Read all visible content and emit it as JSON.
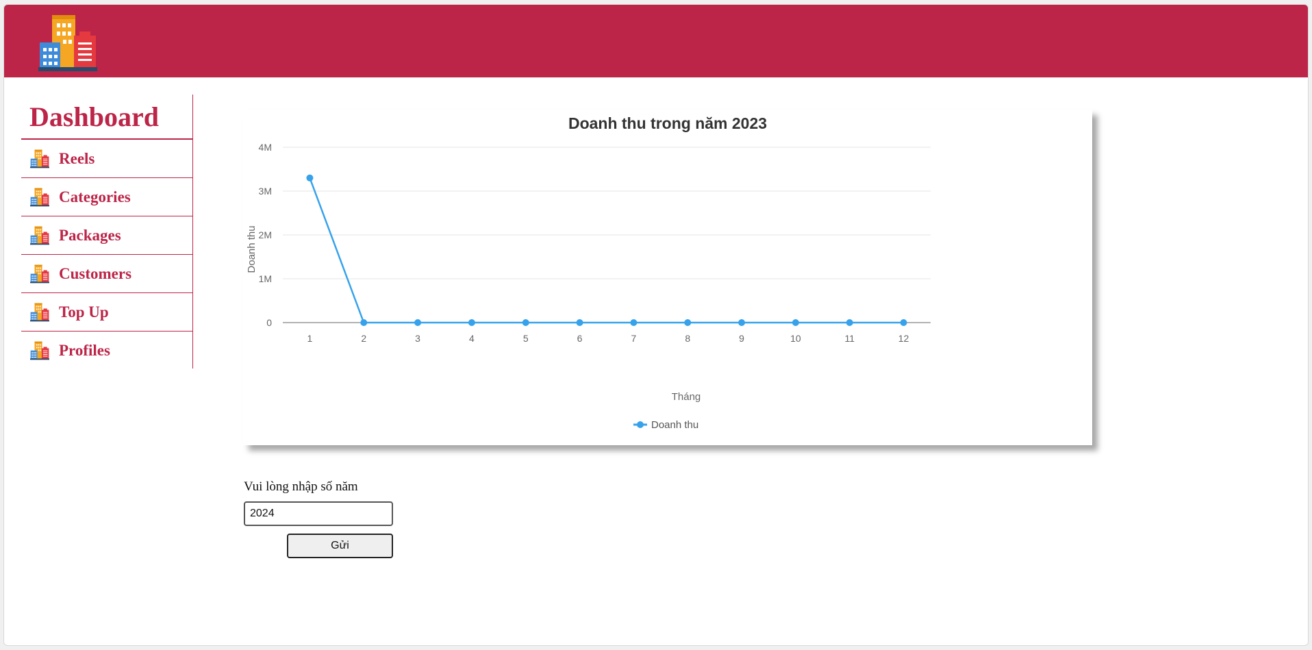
{
  "sidebar": {
    "title": "Dashboard",
    "items": [
      {
        "label": "Reels"
      },
      {
        "label": "Categories"
      },
      {
        "label": "Packages"
      },
      {
        "label": "Customers"
      },
      {
        "label": "Top Up"
      },
      {
        "label": "Profiles"
      }
    ]
  },
  "form": {
    "label": "Vui lòng nhập số năm",
    "year_value": "2024",
    "submit_label": "Gửi"
  },
  "colors": {
    "brand": "#bc2548",
    "series": "#36a2eb"
  },
  "icons": {
    "logo": "building-logo-icon",
    "menu": "building-icon"
  },
  "chart_data": {
    "type": "line",
    "title": "Doanh thu trong năm 2023",
    "xlabel": "Tháng",
    "ylabel": "Doanh thu",
    "categories": [
      "1",
      "2",
      "3",
      "4",
      "5",
      "6",
      "7",
      "8",
      "9",
      "10",
      "11",
      "12"
    ],
    "series": [
      {
        "name": "Doanh thu",
        "values": [
          3300000,
          0,
          0,
          0,
          0,
          0,
          0,
          0,
          0,
          0,
          0,
          0
        ]
      }
    ],
    "ylim": [
      0,
      4000000
    ],
    "yticks": [
      {
        "value": 0,
        "label": "0"
      },
      {
        "value": 1000000,
        "label": "1M"
      },
      {
        "value": 2000000,
        "label": "2M"
      },
      {
        "value": 3000000,
        "label": "3M"
      },
      {
        "value": 4000000,
        "label": "4M"
      }
    ],
    "grid": true,
    "legend": "bottom"
  }
}
